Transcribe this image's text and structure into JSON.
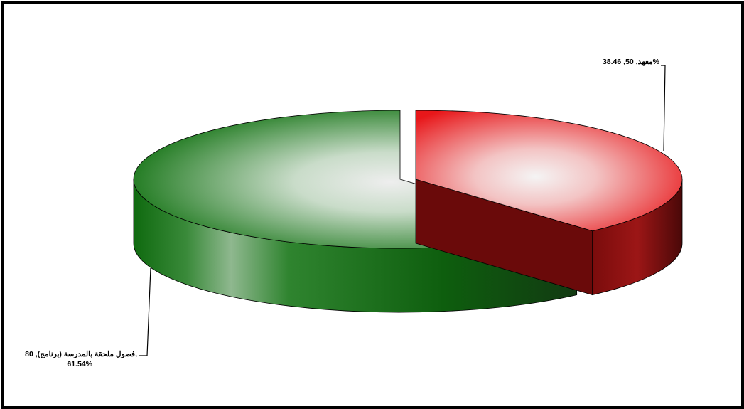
{
  "chart_data": {
    "type": "pie",
    "style": "3d-exploded",
    "slices": [
      {
        "name": "معهد",
        "value": 50,
        "percent": 38.46,
        "label_lines": [
          "معهد, 50, 38.46%"
        ],
        "color": "#e8171a",
        "dark_color": "#5a0b0b"
      },
      {
        "name": "فصول ملحقة بالمدرسة (برنامج)",
        "value": 80,
        "percent": 61.54,
        "label_lines": [
          "فصول ملحقة بالمدرسة (برنامج), 80,",
          "61.54%"
        ],
        "color": "#137313",
        "dark_color": "#0b3a0b"
      }
    ],
    "legend": "none",
    "labels": "outside-with-leader-lines"
  }
}
